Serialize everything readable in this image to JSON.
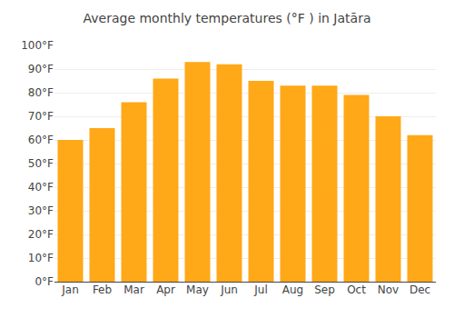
{
  "chart_data": {
    "type": "bar",
    "title": "Average monthly temperatures (°F ) in Jatāra",
    "categories": [
      "Jan",
      "Feb",
      "Mar",
      "Apr",
      "May",
      "Jun",
      "Jul",
      "Aug",
      "Sep",
      "Oct",
      "Nov",
      "Dec"
    ],
    "values": [
      60,
      65,
      76,
      86,
      93,
      92,
      85,
      83,
      83,
      79,
      70,
      62
    ],
    "color": "#FFA818",
    "ylim": [
      0,
      100
    ],
    "yticks": [
      {
        "value": 0,
        "label": "0°F"
      },
      {
        "value": 10,
        "label": "10°F"
      },
      {
        "value": 20,
        "label": "20°F"
      },
      {
        "value": 30,
        "label": "30°F"
      },
      {
        "value": 40,
        "label": "40°F"
      },
      {
        "value": 50,
        "label": "50°F"
      },
      {
        "value": 60,
        "label": "60°F"
      },
      {
        "value": 70,
        "label": "70°F"
      },
      {
        "value": 80,
        "label": "80°F"
      },
      {
        "value": 90,
        "label": "90°F"
      },
      {
        "value": 100,
        "label": "100°F"
      }
    ],
    "grid": true
  }
}
